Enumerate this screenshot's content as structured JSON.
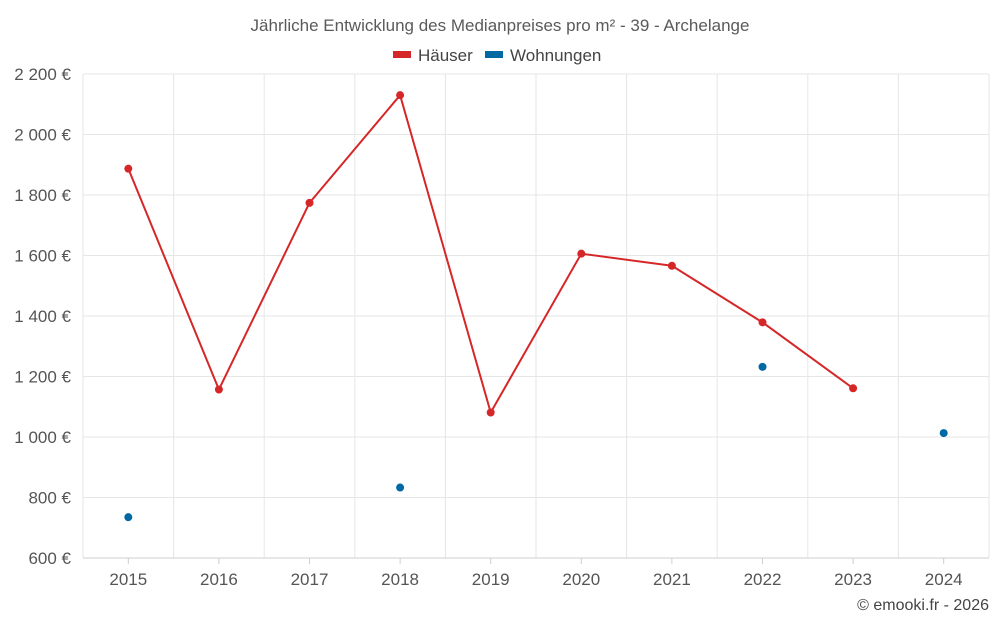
{
  "chart_data": {
    "type": "line",
    "title": "Jährliche Entwicklung des Medianpreises pro m² - 39 - Archelange",
    "categories": [
      "2015",
      "2016",
      "2017",
      "2018",
      "2019",
      "2020",
      "2021",
      "2022",
      "2023",
      "2024"
    ],
    "series": [
      {
        "name": "Häuser",
        "color": "#d62728",
        "style": "line-with-markers",
        "values": [
          1887,
          1157,
          1774,
          2130,
          1081,
          1606,
          1566,
          1379,
          1161,
          null
        ]
      },
      {
        "name": "Wohnungen",
        "color": "#0068a3",
        "style": "markers-only",
        "values": [
          735,
          null,
          null,
          833,
          null,
          null,
          null,
          1232,
          null,
          1013
        ]
      }
    ],
    "ylim": [
      600,
      2200
    ],
    "yticks": [
      600,
      800,
      1000,
      1200,
      1400,
      1600,
      1800,
      2000,
      2200
    ],
    "ytick_labels": [
      "600 €",
      "800 €",
      "1 000 €",
      "1 200 €",
      "1 400 €",
      "1 600 €",
      "1 800 €",
      "2 000 €",
      "2 200 €"
    ],
    "xlabel": "",
    "ylabel": "",
    "grid": true,
    "legend_position": "top-center",
    "credit": "© emooki.fr - 2026"
  }
}
